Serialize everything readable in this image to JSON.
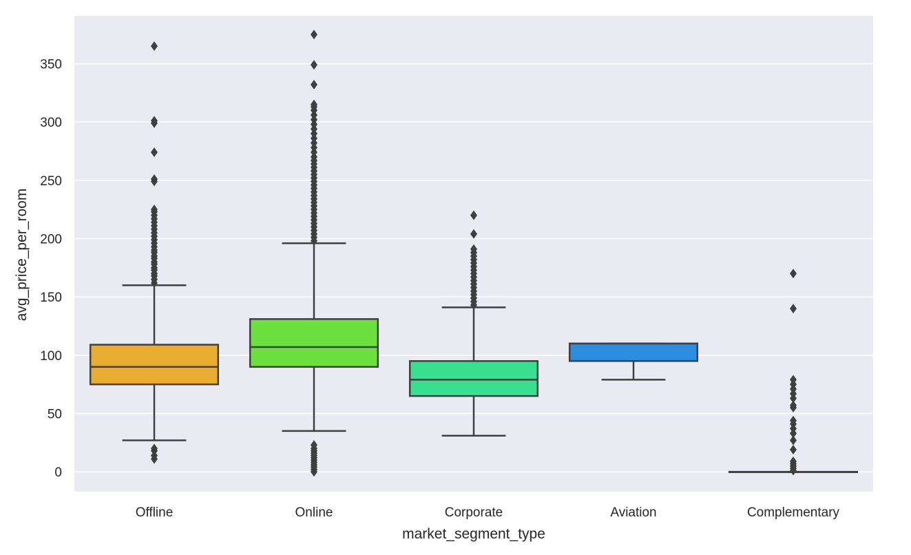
{
  "chart_data": {
    "type": "box",
    "title": "",
    "xlabel": "market_segment_type",
    "ylabel": "avg_price_per_room",
    "ylim": [
      -17,
      391
    ],
    "yticks": [
      0,
      50,
      100,
      150,
      200,
      250,
      300,
      350
    ],
    "grid": true,
    "colors": {
      "background": "#eaeaf2",
      "grid": "#ffffff",
      "line": "#3f3f3f"
    },
    "categories": [
      "Offline",
      "Online",
      "Corporate",
      "Aviation",
      "Complementary"
    ],
    "boxes": [
      {
        "category": "Offline",
        "color": "#e8ad30",
        "whisker_low": 27,
        "q1": 75,
        "median": 90,
        "q3": 109,
        "whisker_high": 160,
        "outliers": [
          11,
          14,
          18,
          20,
          162,
          165,
          168,
          170,
          173,
          175,
          178,
          180,
          183,
          185,
          188,
          190,
          193,
          196,
          199,
          202,
          205,
          208,
          211,
          214,
          217,
          220,
          223,
          225,
          249,
          251,
          274,
          299,
          301,
          365
        ]
      },
      {
        "category": "Online",
        "color": "#6ce03f",
        "whisker_low": 35,
        "q1": 90,
        "median": 107,
        "q3": 131,
        "whisker_high": 196,
        "outliers": [
          0,
          2,
          4,
          6,
          8,
          10,
          12,
          14,
          16,
          18,
          20,
          23,
          198,
          201,
          204,
          207,
          210,
          213,
          216,
          219,
          222,
          225,
          228,
          231,
          234,
          237,
          240,
          243,
          246,
          249,
          252,
          255,
          258,
          261,
          264,
          267,
          270,
          274,
          278,
          282,
          286,
          290,
          294,
          298,
          302,
          306,
          310,
          313,
          315,
          332,
          349,
          375
        ]
      },
      {
        "category": "Corporate",
        "color": "#36e08e",
        "whisker_low": 31,
        "q1": 65,
        "median": 79,
        "q3": 95,
        "whisker_high": 141,
        "outliers": [
          143,
          146,
          149,
          152,
          155,
          158,
          161,
          164,
          167,
          170,
          173,
          176,
          179,
          182,
          185,
          188,
          191,
          204,
          220
        ]
      },
      {
        "category": "Aviation",
        "color": "#2b8ddf",
        "whisker_low": 79,
        "q1": 95,
        "median": 110,
        "q3": 110,
        "whisker_high": 110,
        "outliers": []
      },
      {
        "category": "Complementary",
        "color": "#b5b5e0",
        "whisker_low": 0,
        "q1": 0,
        "median": 0,
        "q3": 0,
        "whisker_high": 0,
        "outliers": [
          1,
          3,
          5,
          7,
          9,
          19,
          27,
          33,
          37,
          41,
          44,
          55,
          57,
          63,
          67,
          71,
          75,
          79,
          140,
          170
        ]
      }
    ]
  }
}
